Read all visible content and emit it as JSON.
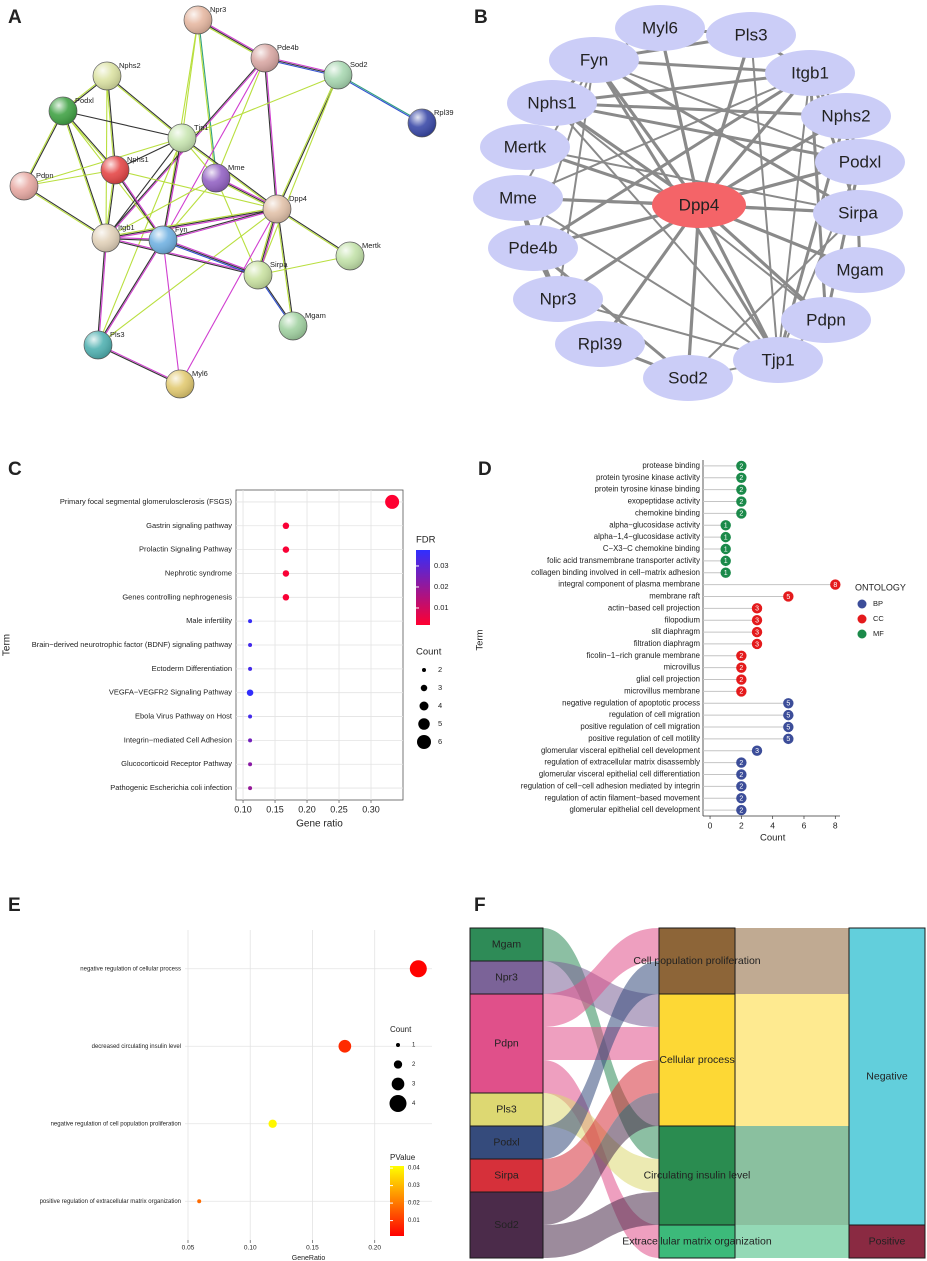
{
  "chart_data": [
    {
      "type": "network",
      "panel": "A",
      "style": "string",
      "nodes": [
        {
          "name": "Npr3",
          "color": "#e6b8a2"
        },
        {
          "name": "Pde4b",
          "color": "#d9a8a4"
        },
        {
          "name": "Sod2",
          "color": "#a9d8b2"
        },
        {
          "name": "Rpl39",
          "color": "#3b4aa8"
        },
        {
          "name": "Nphs2",
          "color": "#dce3a4"
        },
        {
          "name": "Podxl",
          "color": "#42a346"
        },
        {
          "name": "Tjp1",
          "color": "#c9e6b2"
        },
        {
          "name": "Nphs1",
          "color": "#e54848"
        },
        {
          "name": "Mme",
          "color": "#9464c4"
        },
        {
          "name": "Pdpn",
          "color": "#e8aaa4"
        },
        {
          "name": "Dpp4",
          "color": "#e2c2aa"
        },
        {
          "name": "Itgb1",
          "color": "#e2d2ba"
        },
        {
          "name": "Fyn",
          "color": "#72b2e2"
        },
        {
          "name": "Mertk",
          "color": "#c3e2aa"
        },
        {
          "name": "Sirpa",
          "color": "#cae2a2"
        },
        {
          "name": "Mgam",
          "color": "#a2d2a2"
        },
        {
          "name": "Pls3",
          "color": "#52b2b2"
        },
        {
          "name": "Myl6",
          "color": "#e2ca72"
        }
      ]
    },
    {
      "type": "network",
      "panel": "B",
      "style": "cytoscape",
      "nodes": [
        {
          "name": "Myl6",
          "color": "#cbcdf7"
        },
        {
          "name": "Pls3",
          "color": "#cbcdf7"
        },
        {
          "name": "Fyn",
          "color": "#cbcdf7"
        },
        {
          "name": "Itgb1",
          "color": "#cbcdf7"
        },
        {
          "name": "Nphs1",
          "color": "#cbcdf7"
        },
        {
          "name": "Nphs2",
          "color": "#cbcdf7"
        },
        {
          "name": "Mertk",
          "color": "#cbcdf7"
        },
        {
          "name": "Podxl",
          "color": "#cbcdf7"
        },
        {
          "name": "Mme",
          "color": "#cbcdf7"
        },
        {
          "name": "Sirpa",
          "color": "#cbcdf7"
        },
        {
          "name": "Pde4b",
          "color": "#cbcdf7"
        },
        {
          "name": "Mgam",
          "color": "#cbcdf7"
        },
        {
          "name": "Npr3",
          "color": "#cbcdf7"
        },
        {
          "name": "Pdpn",
          "color": "#cbcdf7"
        },
        {
          "name": "Rpl39",
          "color": "#cbcdf7"
        },
        {
          "name": "Tjp1",
          "color": "#cbcdf7"
        },
        {
          "name": "Sod2",
          "color": "#cbcdf7"
        },
        {
          "name": "Dpp4",
          "color": "#f46468"
        }
      ]
    },
    {
      "type": "dot",
      "panel": "C",
      "x_label": "Gene ratio",
      "y_label": "Term",
      "categories": [
        "Primary focal segmental glomerulosclerosis (FSGS)",
        "Gastrin signaling pathway",
        "Prolactin Signaling Pathway",
        "Nephrotic syndrome",
        "Genes controlling nephrogenesis",
        "Male infertility",
        "Brain−derived neurotrophic factor (BDNF) signaling pathway",
        "Ectoderm Differentiation",
        "VEGFA−VEGFR2 Signaling Pathway",
        "Ebola Virus Pathway on Host",
        "Integrin−mediated Cell Adhesion",
        "Glucocorticoid Receptor Pathway",
        "Pathogenic Escherichia coli infection"
      ],
      "values": [
        0.333,
        0.167,
        0.167,
        0.167,
        0.167,
        0.111,
        0.111,
        0.111,
        0.111,
        0.111,
        0.111,
        0.111,
        0.111
      ],
      "counts": [
        6,
        3,
        3,
        3,
        3,
        2,
        2,
        2,
        3,
        2,
        2,
        2,
        2
      ],
      "color_values": [
        0.002,
        0.003,
        0.003,
        0.003,
        0.003,
        0.036,
        0.034,
        0.034,
        0.037,
        0.034,
        0.026,
        0.022,
        0.02
      ],
      "xlim": [
        0.089,
        0.35
      ],
      "xticks": [
        {
          "value": 0.1,
          "label": "0.10"
        },
        0.15,
        {
          "value": 0.2,
          "label": "0.20"
        },
        0.25,
        {
          "value": 0.3,
          "label": "0.30"
        }
      ],
      "grid": true,
      "color_legend": {
        "title": "FDR",
        "range": [
          0.0019,
          0.0376
        ],
        "ticks": [
          0.01,
          0.02,
          0.03
        ],
        "colors": [
          "#ff0030",
          "#2f2fff"
        ]
      },
      "size_legend": {
        "title": "Count",
        "values": [
          2,
          3,
          4,
          5,
          6
        ]
      }
    },
    {
      "type": "lollipop",
      "panel": "D",
      "x_label": "Count",
      "y_label": "Term",
      "categories": [
        "protease binding",
        "protein tyrosine kinase activity",
        "protein tyrosine kinase binding",
        "exopeptidase activity",
        "chemokine binding",
        "alpha−glucosidase activity",
        "alpha−1,4−glucosidase activity",
        "C−X3−C chemokine binding",
        "folic acid transmembrane transporter activity",
        "collagen binding involved in cell−matrix adhesion",
        "integral component of plasma membrane",
        "membrane raft",
        "actin−based cell projection",
        "filopodium",
        "slit diaphragm",
        "filtration diaphragm",
        "ficolin−1−rich granule membrane",
        "microvillus",
        "glial cell projection",
        "microvillus membrane",
        "negative regulation of apoptotic process",
        "regulation of cell migration",
        "positive regulation of cell migration",
        "positive regulation of cell motility",
        "glomerular visceral epithelial cell development",
        "regulation of extracellular matrix disassembly",
        "glomerular visceral epithelial cell differentiation",
        "regulation of cell−cell adhesion mediated by integrin",
        "regulation of actin filament−based movement",
        "glomerular epithelial cell development"
      ],
      "values": [
        2,
        2,
        2,
        2,
        2,
        1,
        1,
        1,
        1,
        1,
        8,
        5,
        3,
        3,
        3,
        3,
        2,
        2,
        2,
        2,
        5,
        5,
        5,
        5,
        3,
        2,
        2,
        2,
        2,
        2
      ],
      "groups": [
        "MF",
        "MF",
        "MF",
        "MF",
        "MF",
        "MF",
        "MF",
        "MF",
        "MF",
        "MF",
        "CC",
        "CC",
        "CC",
        "CC",
        "CC",
        "CC",
        "CC",
        "CC",
        "CC",
        "CC",
        "BP",
        "BP",
        "BP",
        "BP",
        "BP",
        "BP",
        "BP",
        "BP",
        "BP",
        "BP"
      ],
      "xlim": [
        -0.45,
        8.3
      ],
      "xticks": [
        0,
        2,
        4,
        6,
        8
      ],
      "legend": {
        "title": "ONTOLOGY",
        "entries": [
          {
            "name": "BP",
            "color": "#3c4d99"
          },
          {
            "name": "CC",
            "color": "#e41a1c"
          },
          {
            "name": "MF",
            "color": "#1b8a4a"
          }
        ]
      }
    },
    {
      "type": "dot",
      "panel": "E",
      "x_label": "GeneRatio",
      "categories": [
        "negative regulation of cellular process",
        "decreased circulating insulin level",
        "negative regulation of cell population proliferation",
        "positive regulation of extracellular matrix organization"
      ],
      "values": [
        0.235,
        0.176,
        0.118,
        0.059
      ],
      "counts": [
        4,
        3,
        2,
        1
      ],
      "color_values": [
        0.0015,
        0.008,
        0.04,
        0.018
      ],
      "xlim": [
        0.0476,
        0.246
      ],
      "xticks": [
        0.05,
        {
          "value": 0.1,
          "label": "0.10"
        },
        0.15,
        {
          "value": 0.2,
          "label": "0.20"
        }
      ],
      "grid": true,
      "size_legend": {
        "title": "Count",
        "values": [
          1,
          2,
          3,
          4
        ]
      },
      "color_legend": {
        "title": "PValue",
        "range": [
          0.0012,
          0.0412
        ],
        "ticks": [
          0.01,
          0.02,
          0.03,
          0.04
        ],
        "colors": [
          "#ff0000",
          "#ffff00"
        ]
      }
    },
    {
      "type": "sankey",
      "panel": "F",
      "columns": [
        [
          {
            "name": "Mgam",
            "color": "#2e8b57"
          },
          {
            "name": "Npr3",
            "color": "#7b6398"
          },
          {
            "name": "Pdpn",
            "color": "#e0508a"
          },
          {
            "name": "Pls3",
            "color": "#ddd872"
          },
          {
            "name": "Podxl",
            "color": "#354b7c"
          },
          {
            "name": "Sirpa",
            "color": "#d6303a"
          },
          {
            "name": "Sod2",
            "color": "#4b2b4a"
          }
        ],
        [
          {
            "name": "Cell population proliferation",
            "color": "#8d6538"
          },
          {
            "name": "Cellular process",
            "color": "#fdd835"
          },
          {
            "name": "Circulating insulin level",
            "color": "#2a8c50"
          },
          {
            "name": "Extracellular matrix organization",
            "color": "#3cba7a"
          }
        ],
        [
          {
            "name": "Negative",
            "color": "#62cfdc"
          },
          {
            "name": "Positive",
            "color": "#8a2a42"
          }
        ]
      ],
      "links": [
        {
          "source": "Mgam",
          "target": "Circulating insulin level",
          "value": 1
        },
        {
          "source": "Npr3",
          "target": "Cellular process",
          "value": 1
        },
        {
          "source": "Pdpn",
          "target": "Cell population proliferation",
          "value": 1
        },
        {
          "source": "Pdpn",
          "target": "Cellular process",
          "value": 1
        },
        {
          "source": "Pdpn",
          "target": "Extracellular matrix organization",
          "value": 1
        },
        {
          "source": "Pls3",
          "target": "Circulating insulin level",
          "value": 1
        },
        {
          "source": "Podxl",
          "target": "Cell population proliferation",
          "value": 1
        },
        {
          "source": "Sirpa",
          "target": "Cellular process",
          "value": 1
        },
        {
          "source": "Sod2",
          "target": "Cellular process",
          "value": 1
        },
        {
          "source": "Sod2",
          "target": "Circulating insulin level",
          "value": 1
        },
        {
          "source": "Cell population proliferation",
          "target": "Negative",
          "value": 2
        },
        {
          "source": "Cellular process",
          "target": "Negative",
          "value": 4
        },
        {
          "source": "Circulating insulin level",
          "target": "Negative",
          "value": 3
        },
        {
          "source": "Extracellular matrix organization",
          "target": "Positive",
          "value": 1
        }
      ]
    }
  ]
}
